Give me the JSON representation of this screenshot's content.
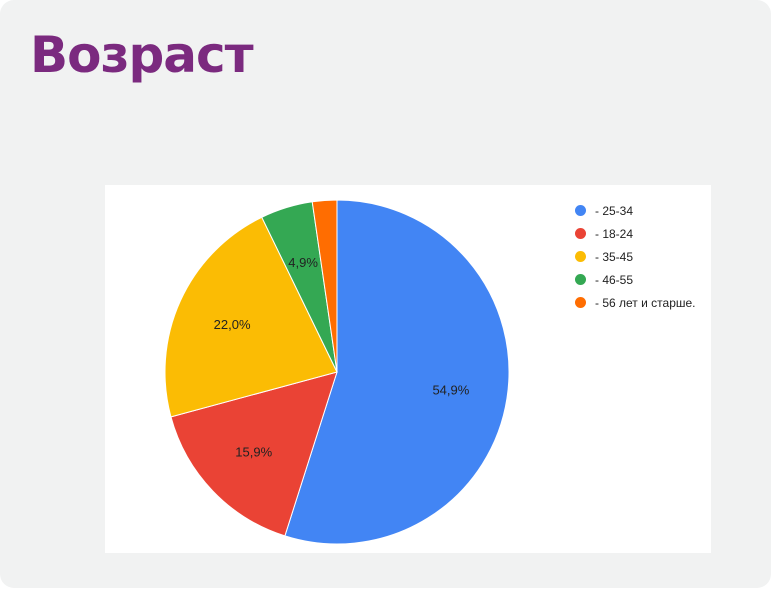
{
  "page": {
    "title": "Возраст"
  },
  "colors": {
    "title": "#7b2a7f",
    "card_background": "#f1f2f2"
  },
  "chart_data": {
    "type": "pie",
    "title": "",
    "labels": [
      "- 25-34",
      "- 18-24",
      "- 35-45",
      "- 46-55",
      "- 56 лет и старше."
    ],
    "values": [
      54.9,
      15.9,
      22.0,
      4.9,
      2.3
    ],
    "data_labels": [
      "54,9%",
      "15,9%",
      "22,0%",
      "4,9%",
      ""
    ],
    "colors": [
      "#4285f4",
      "#ea4335",
      "#fbbc04",
      "#34a853",
      "#ff6d01"
    ],
    "legend_position": "right"
  }
}
